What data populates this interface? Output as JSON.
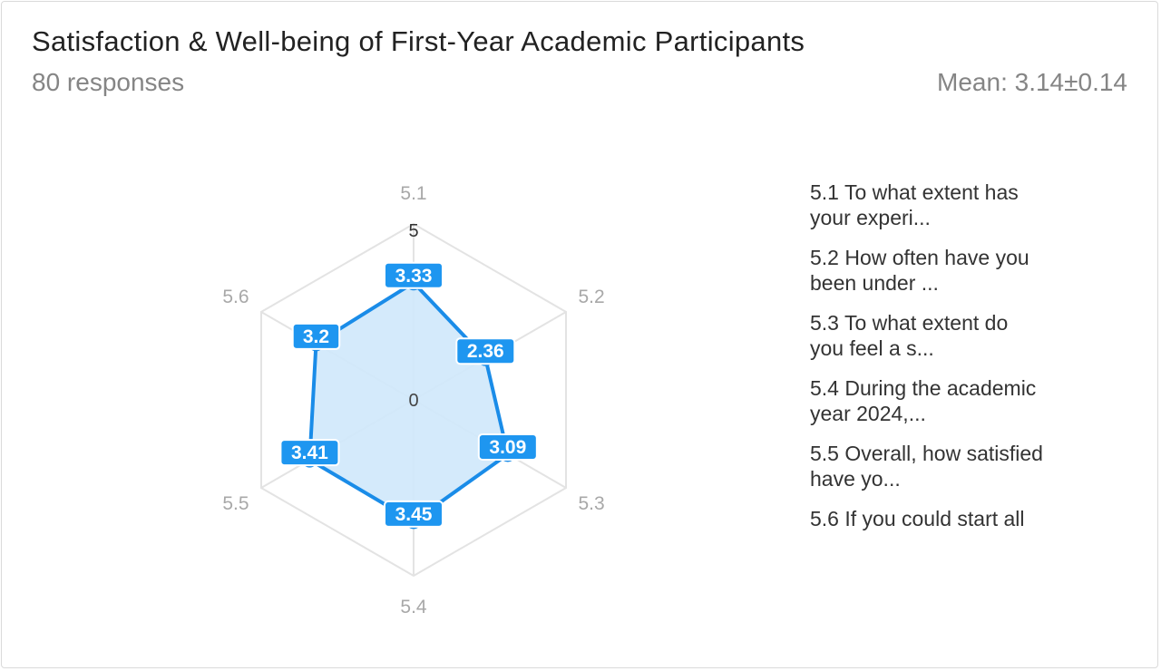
{
  "header": {
    "title": "Satisfaction & Well-being of First-Year Academic Participants",
    "responses": "80 responses",
    "mean": "Mean: 3.14±0.14"
  },
  "chart_data": {
    "type": "radar",
    "axes": [
      "5.1",
      "5.2",
      "5.3",
      "5.4",
      "5.5",
      "5.6"
    ],
    "values": [
      3.33,
      2.36,
      3.09,
      3.45,
      3.41,
      3.2
    ],
    "value_labels": [
      "3.33",
      "2.36",
      "3.09",
      "3.45",
      "3.41",
      "3.2"
    ],
    "range": [
      0,
      5
    ],
    "scale_labels": [
      "0",
      "5"
    ],
    "grid": true,
    "legend_position": "right",
    "colors": {
      "line": "#1a8ce8",
      "fill": "#cfe8fb",
      "label_bg": "#1e96f0",
      "grid": "#e3e3e3",
      "axis_label": "#a8a8a8"
    }
  },
  "legend": {
    "items": [
      "5.1 To what extent has\nyour experi...",
      "5.2 How often have you\nbeen under ...",
      "5.3 To what extent do\nyou feel a s...",
      "5.4 During the academic\nyear 2024,...",
      "5.5 Overall, how satisfied\nhave yo...",
      "5.6 If you could start all"
    ]
  }
}
